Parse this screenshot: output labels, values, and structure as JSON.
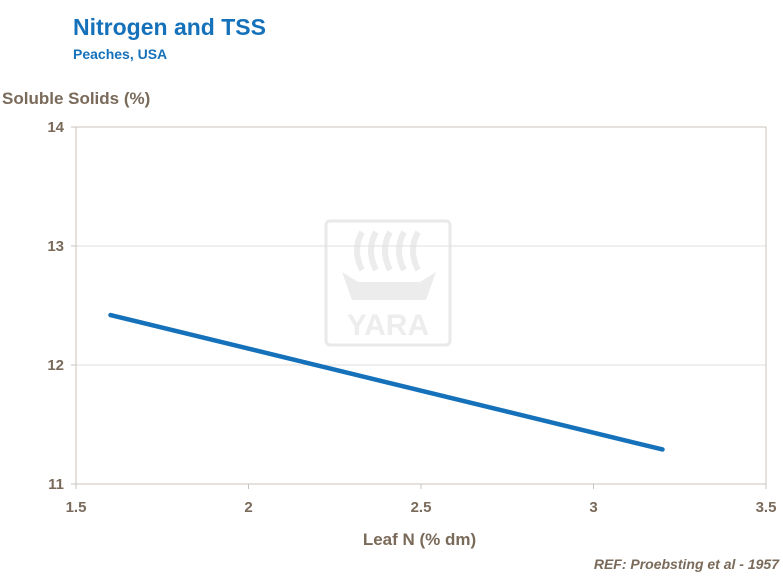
{
  "chart_data": {
    "type": "line",
    "title": "Nitrogen and TSS",
    "subtitle": "Peaches,  USA",
    "xlabel": "Leaf N (% dm)",
    "ylabel": "Soluble Solids (%)",
    "xlim": [
      1.5,
      3.5
    ],
    "ylim": [
      11,
      14
    ],
    "xticks": [
      "1.5",
      "2",
      "2.5",
      "3",
      "3.5"
    ],
    "yticks": [
      "11",
      "12",
      "13",
      "14"
    ],
    "grid": "horizontal",
    "series": [
      {
        "name": "TSS",
        "x": [
          1.6,
          3.2
        ],
        "y": [
          12.42,
          11.29
        ],
        "color": "#1571ba"
      }
    ],
    "reference": "REF: Proebsting et al - 1957",
    "watermark": "YARA"
  }
}
